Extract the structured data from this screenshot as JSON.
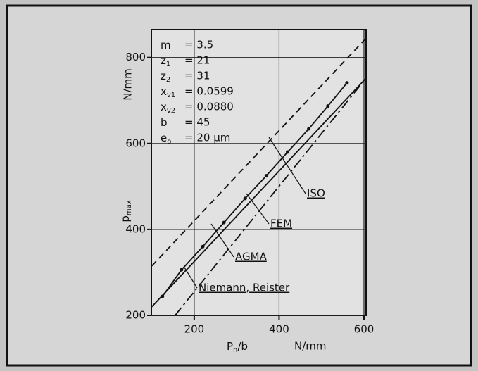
{
  "chart_data": {
    "type": "line",
    "parameters": [
      {
        "symbol": "m",
        "sub": "",
        "value": "= 3.5"
      },
      {
        "symbol": "z",
        "sub": "1",
        "value": "= 21"
      },
      {
        "symbol": "z",
        "sub": "2",
        "value": "= 31"
      },
      {
        "symbol": "x",
        "sub": "v1",
        "value": "= 0.0599"
      },
      {
        "symbol": "x",
        "sub": "v2",
        "value": "= 0.0880"
      },
      {
        "symbol": "b",
        "sub": "",
        "value": "= 45"
      },
      {
        "symbol": "e",
        "sub": "o",
        "value": "= 20 µm"
      }
    ],
    "y_label": {
      "symbol": "p",
      "sub": "max"
    },
    "y_unit": "N/mm",
    "x_label": {
      "symbol": "P",
      "sub": "n",
      "rest": "/b"
    },
    "x_unit": "N/mm",
    "xlim": [
      99,
      605
    ],
    "ylim": [
      200,
      865
    ],
    "xticks": [
      200,
      400,
      600
    ],
    "yticks": [
      200,
      400,
      600,
      800
    ],
    "grid": true,
    "series": [
      {
        "name": "ISO",
        "color": "#111111",
        "dash": "dashed",
        "x": [
          100,
          605
        ],
        "values": [
          315,
          845
        ]
      },
      {
        "name": "FEM",
        "color": "#111111",
        "dash": "solid",
        "markers": true,
        "x": [
          125,
          170,
          220,
          270,
          320,
          370,
          420,
          470,
          515,
          560
        ],
        "values": [
          244,
          306,
          360,
          416,
          472,
          525,
          580,
          634,
          687,
          741
        ]
      },
      {
        "name": "AGMA",
        "color": "#111111",
        "dash": "dashdot",
        "x": [
          155,
          605
        ],
        "values": [
          200,
          752
        ]
      },
      {
        "name": "Niemann, Reister",
        "color": "#111111",
        "dash": "solid",
        "x": [
          100,
          605
        ],
        "values": [
          220,
          752
        ]
      }
    ]
  }
}
